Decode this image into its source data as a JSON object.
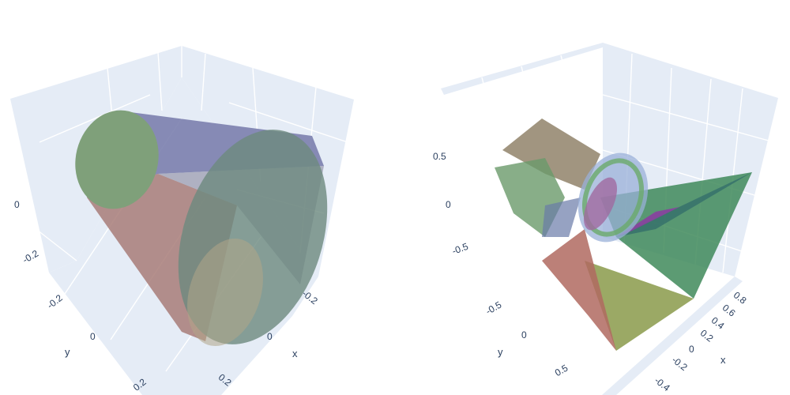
{
  "chart_data": [
    {
      "type": "mesh3d",
      "scene": "left",
      "shape": "truncated cone (frustum)",
      "axes": {
        "x": {
          "title": "x",
          "ticks": [
            "-0.2",
            "0",
            "0.2"
          ]
        },
        "y": {
          "title": "y",
          "ticks": [
            "-0.2",
            "0",
            "0.2"
          ]
        },
        "z": {
          "title": "",
          "ticks": [
            "-0.2",
            "0"
          ]
        }
      },
      "colors": {
        "small_cap": "#7fa07a",
        "large_cap": "#6d8a7e",
        "surface_top": "#7b7fae",
        "surface_bottom": "#a87c78"
      },
      "grid": true,
      "opacity": 0.75
    },
    {
      "type": "mesh3d",
      "scene": "right",
      "shape": "multiple overlapping translucent polyhedra around a torus",
      "axes": {
        "x": {
          "title": "x",
          "ticks": [
            "0.8",
            "0.6",
            "0.4",
            "0.2",
            "0",
            "-0.2",
            "-0.4"
          ]
        },
        "y": {
          "title": "y",
          "ticks": [
            "-0.5",
            "0",
            "0.5"
          ]
        },
        "z": {
          "title": "",
          "ticks": [
            "0.5",
            "0",
            "-0.5"
          ]
        }
      },
      "colors": {
        "green": "#3f8a5a",
        "olive": "#8a9a4a",
        "red": "#b06a60",
        "purple": "#8a3fa0",
        "torus": "#9ab0d8"
      },
      "grid": true,
      "opacity": 0.65
    }
  ]
}
